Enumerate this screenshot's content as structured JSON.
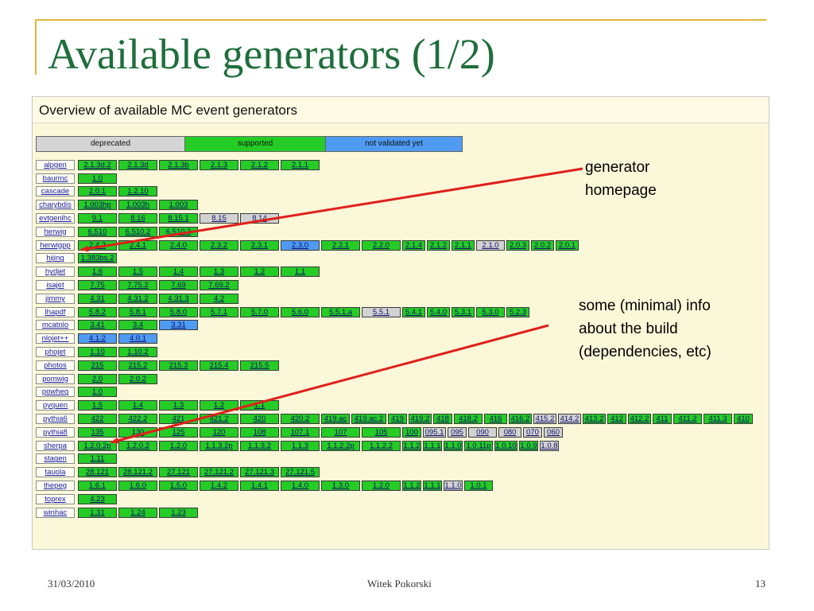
{
  "slide": {
    "title": "Available generators (1/2)",
    "footer": {
      "date": "31/03/2010",
      "author": "Witek Pokorski",
      "page": "13"
    }
  },
  "panel": {
    "title": "Overview of available MC event generators",
    "legend": {
      "deprecated": "deprecated",
      "supported": "supported",
      "not_validated": "not validated yet"
    }
  },
  "colors": {
    "supported": "#25cc25",
    "deprecated": "#d2d2d2",
    "not_validated": "#4f9bf3",
    "title": "#1f6e3c",
    "arrow": "#e0201a",
    "panel_bg": "#fbf7d9"
  },
  "annotations": {
    "homepage": [
      "generator",
      "homepage"
    ],
    "build_info": [
      "some (minimal) info",
      "about the build",
      "(dependencies, etc)"
    ]
  },
  "generators": [
    {
      "name": "alpgen",
      "versions": [
        {
          "v": "2.1.3d.2",
          "s": "s",
          "w": "w"
        },
        {
          "v": "2.1.3d",
          "s": "s",
          "w": "w"
        },
        {
          "v": "2.1.3b",
          "s": "s",
          "w": "w"
        },
        {
          "v": "2.1.3",
          "s": "s",
          "w": "w"
        },
        {
          "v": "2.1.2",
          "s": "s",
          "w": "w"
        },
        {
          "v": "2.1.1",
          "s": "s",
          "w": "w"
        }
      ]
    },
    {
      "name": "baurmc",
      "versions": [
        {
          "v": "1.0",
          "s": "s",
          "w": "w"
        }
      ]
    },
    {
      "name": "cascade",
      "versions": [
        {
          "v": "2.0.1",
          "s": "s",
          "w": "w"
        },
        {
          "v": "1.2.10",
          "s": "s",
          "w": "w"
        }
      ]
    },
    {
      "name": "charybdis",
      "versions": [
        {
          "v": "1.003hp",
          "s": "s",
          "w": "w"
        },
        {
          "v": "1.003h",
          "s": "s",
          "w": "w"
        },
        {
          "v": "1.003",
          "s": "s",
          "w": "w"
        }
      ]
    },
    {
      "name": "evtgenlhc",
      "versions": [
        {
          "v": "9.1",
          "s": "s",
          "w": "w"
        },
        {
          "v": "8.16",
          "s": "s",
          "w": "w"
        },
        {
          "v": "8.15.1",
          "s": "s",
          "w": "w"
        },
        {
          "v": "8.15",
          "s": "d",
          "w": "w"
        },
        {
          "v": "8.14",
          "s": "d",
          "w": "w"
        }
      ]
    },
    {
      "name": "herwig",
      "versions": [
        {
          "v": "6.510",
          "s": "s",
          "w": "w"
        },
        {
          "v": "6.510.2",
          "s": "s",
          "w": "w"
        },
        {
          "v": "6.510.3",
          "s": "s",
          "w": "w"
        }
      ]
    },
    {
      "name": "herwigpp",
      "versions": [
        {
          "v": "2.4.2",
          "s": "s",
          "w": "w"
        },
        {
          "v": "2.4.1",
          "s": "s",
          "w": "w"
        },
        {
          "v": "2.4.0",
          "s": "s",
          "w": "w"
        },
        {
          "v": "2.3.2",
          "s": "s",
          "w": "w"
        },
        {
          "v": "2.3.1",
          "s": "s",
          "w": "w"
        },
        {
          "v": "2.3.0",
          "s": "n",
          "w": "w"
        },
        {
          "v": "2.2.1",
          "s": "s",
          "w": "w"
        },
        {
          "v": "2.2.0",
          "s": "s",
          "w": "w"
        },
        {
          "v": "2.1.4",
          "s": "s",
          "w": "t"
        },
        {
          "v": "2.1.2",
          "s": "s",
          "w": "t"
        },
        {
          "v": "2.1.1",
          "s": "s",
          "w": "t"
        },
        {
          "v": "2.1.0",
          "s": "d",
          "w": "x"
        },
        {
          "v": "2.0.3",
          "s": "s",
          "w": "t"
        },
        {
          "v": "2.0.2",
          "s": "s",
          "w": "t"
        },
        {
          "v": "2.0.1",
          "s": "s",
          "w": "t"
        }
      ]
    },
    {
      "name": "hijing",
      "versions": [
        {
          "v": "1.383bs.2",
          "s": "s",
          "w": "w"
        }
      ]
    },
    {
      "name": "hydjet",
      "versions": [
        {
          "v": "1.6",
          "s": "s",
          "w": "w"
        },
        {
          "v": "1.5",
          "s": "s",
          "w": "w"
        },
        {
          "v": "1.4",
          "s": "s",
          "w": "w"
        },
        {
          "v": "1.3",
          "s": "s",
          "w": "w"
        },
        {
          "v": "1.2",
          "s": "s",
          "w": "w"
        },
        {
          "v": "1.1",
          "s": "s",
          "w": "w"
        }
      ]
    },
    {
      "name": "isajet",
      "versions": [
        {
          "v": "7.75",
          "s": "s",
          "w": "w"
        },
        {
          "v": "7.75.2",
          "s": "s",
          "w": "w"
        },
        {
          "v": "7.69",
          "s": "s",
          "w": "w"
        },
        {
          "v": "7.69.2",
          "s": "s",
          "w": "w"
        }
      ]
    },
    {
      "name": "jimmy",
      "versions": [
        {
          "v": "4.31",
          "s": "s",
          "w": "w"
        },
        {
          "v": "4.31.2",
          "s": "s",
          "w": "w"
        },
        {
          "v": "4.31.3",
          "s": "s",
          "w": "w"
        },
        {
          "v": "4.2",
          "s": "s",
          "w": "w"
        }
      ]
    },
    {
      "name": "lhapdf",
      "versions": [
        {
          "v": "5.8.2",
          "s": "s",
          "w": "w"
        },
        {
          "v": "5.8.1",
          "s": "s",
          "w": "w"
        },
        {
          "v": "5.8.0",
          "s": "s",
          "w": "w"
        },
        {
          "v": "5.7.1",
          "s": "s",
          "w": "w"
        },
        {
          "v": "5.7.0",
          "s": "s",
          "w": "w"
        },
        {
          "v": "5.6.0",
          "s": "s",
          "w": "w"
        },
        {
          "v": "5.5.1.a",
          "s": "s",
          "w": "w"
        },
        {
          "v": "5.5.1",
          "s": "d",
          "w": "w"
        },
        {
          "v": "5.4.1",
          "s": "s",
          "w": "t"
        },
        {
          "v": "5.4.0",
          "s": "s",
          "w": "t"
        },
        {
          "v": "5.3.1",
          "s": "s",
          "w": "t"
        },
        {
          "v": "5.3.0",
          "s": "s",
          "w": "x"
        },
        {
          "v": "5.2.3",
          "s": "s",
          "w": "t"
        }
      ]
    },
    {
      "name": "mcatnlo",
      "versions": [
        {
          "v": "3.41",
          "s": "s",
          "w": "w"
        },
        {
          "v": "3.4",
          "s": "s",
          "w": "w"
        },
        {
          "v": "3.31",
          "s": "n",
          "w": "w"
        }
      ]
    },
    {
      "name": "nlojet++",
      "versions": [
        {
          "v": "4.1.2",
          "s": "n",
          "w": "w"
        },
        {
          "v": "4.0.1",
          "s": "n",
          "w": "w"
        }
      ]
    },
    {
      "name": "phojet",
      "versions": [
        {
          "v": "1.10",
          "s": "s",
          "w": "w"
        },
        {
          "v": "1.10.2",
          "s": "s",
          "w": "w"
        }
      ]
    },
    {
      "name": "photos",
      "versions": [
        {
          "v": "215",
          "s": "s",
          "w": "w"
        },
        {
          "v": "215.2",
          "s": "s",
          "w": "w"
        },
        {
          "v": "215.3",
          "s": "s",
          "w": "w"
        },
        {
          "v": "215.4",
          "s": "s",
          "w": "w"
        },
        {
          "v": "215.5",
          "s": "s",
          "w": "w"
        }
      ]
    },
    {
      "name": "pomwig",
      "versions": [
        {
          "v": "2.0",
          "s": "s",
          "w": "w"
        },
        {
          "v": "2.0.2",
          "s": "s",
          "w": "w"
        }
      ]
    },
    {
      "name": "powheg",
      "versions": [
        {
          "v": "1.0",
          "s": "s",
          "w": "w"
        }
      ]
    },
    {
      "name": "pyquen",
      "versions": [
        {
          "v": "1.5",
          "s": "s",
          "w": "w"
        },
        {
          "v": "1.4",
          "s": "s",
          "w": "w"
        },
        {
          "v": "1.3",
          "s": "s",
          "w": "w"
        },
        {
          "v": "1.2",
          "s": "s",
          "w": "w"
        },
        {
          "v": "1.1",
          "s": "s",
          "w": "w"
        }
      ]
    },
    {
      "name": "pythia6",
      "versions": [
        {
          "v": "422",
          "s": "s",
          "w": "w"
        },
        {
          "v": "422.2",
          "s": "s",
          "w": "w"
        },
        {
          "v": "421",
          "s": "s",
          "w": "w"
        },
        {
          "v": "421.2",
          "s": "s",
          "w": "w"
        },
        {
          "v": "420",
          "s": "s",
          "w": "w"
        },
        {
          "v": "420.2",
          "s": "s",
          "w": "w"
        },
        {
          "v": "419.ac",
          "s": "s",
          "w": "x"
        },
        {
          "v": "419.ac.2",
          "s": "s",
          "w": "m"
        },
        {
          "v": "419",
          "s": "s",
          "w": "q"
        },
        {
          "v": "419.2",
          "s": "s",
          "w": "t"
        },
        {
          "v": "418",
          "s": "s",
          "w": "q"
        },
        {
          "v": "418.2",
          "s": "s",
          "w": "x"
        },
        {
          "v": "416",
          "s": "s",
          "w": "t"
        },
        {
          "v": "416.2",
          "s": "s",
          "w": "t"
        },
        {
          "v": "415.2",
          "s": "d",
          "w": "t"
        },
        {
          "v": "414.2",
          "s": "d",
          "w": "t"
        },
        {
          "v": "413.2",
          "s": "s",
          "w": "t"
        },
        {
          "v": "412",
          "s": "s",
          "w": "q"
        },
        {
          "v": "412.2",
          "s": "s",
          "w": "t"
        },
        {
          "v": "411",
          "s": "s",
          "w": "q"
        },
        {
          "v": "411.2",
          "s": "s",
          "w": "x"
        },
        {
          "v": "411.3",
          "s": "s",
          "w": "x"
        },
        {
          "v": "410",
          "s": "s",
          "w": "q"
        }
      ]
    },
    {
      "name": "pythia8",
      "versions": [
        {
          "v": "135",
          "s": "s",
          "w": "w"
        },
        {
          "v": "130",
          "s": "s",
          "w": "w"
        },
        {
          "v": "125",
          "s": "s",
          "w": "w"
        },
        {
          "v": "120",
          "s": "s",
          "w": "w"
        },
        {
          "v": "108",
          "s": "s",
          "w": "w"
        },
        {
          "v": "107.1",
          "s": "s",
          "w": "w"
        },
        {
          "v": "107",
          "s": "s",
          "w": "w"
        },
        {
          "v": "105",
          "s": "s",
          "w": "w"
        },
        {
          "v": "100",
          "s": "s",
          "w": "q"
        },
        {
          "v": "095.1",
          "s": "d",
          "w": "t"
        },
        {
          "v": "095",
          "s": "d",
          "w": "q"
        },
        {
          "v": "090",
          "s": "d",
          "w": "x"
        },
        {
          "v": "080",
          "s": "d",
          "w": "t"
        },
        {
          "v": "070",
          "s": "d",
          "w": "q"
        },
        {
          "v": "060",
          "s": "d",
          "w": "q"
        }
      ]
    },
    {
      "name": "sherpa",
      "versions": [
        {
          "v": "1.2.0.2p",
          "s": "s",
          "w": "w"
        },
        {
          "v": "1.2.0.2",
          "s": "s",
          "w": "w"
        },
        {
          "v": "1.2.0",
          "s": "s",
          "w": "w"
        },
        {
          "v": "1.1.3.2p",
          "s": "s",
          "w": "w"
        },
        {
          "v": "1.1.3.2",
          "s": "s",
          "w": "w"
        },
        {
          "v": "1.1.3",
          "s": "s",
          "w": "w"
        },
        {
          "v": "1.1.2.2p",
          "s": "s",
          "w": "w"
        },
        {
          "v": "1.1.2.2",
          "s": "s",
          "w": "w"
        },
        {
          "v": "1.1.2",
          "s": "s",
          "w": "q"
        },
        {
          "v": "1.1.1",
          "s": "s",
          "w": "q"
        },
        {
          "v": "1.1.0",
          "s": "s",
          "w": "q"
        },
        {
          "v": "1.0.11p",
          "s": "s",
          "w": "x"
        },
        {
          "v": "1.0.10",
          "s": "s",
          "w": "t"
        },
        {
          "v": "1.0.9",
          "s": "s",
          "w": "q"
        },
        {
          "v": "1.0.8",
          "s": "d",
          "w": "q"
        }
      ]
    },
    {
      "name": "stagen",
      "versions": [
        {
          "v": "1.11",
          "s": "s",
          "w": "w"
        }
      ]
    },
    {
      "name": "tauola",
      "versions": [
        {
          "v": "28.121",
          "s": "s",
          "w": "w"
        },
        {
          "v": "28.121.2",
          "s": "s",
          "w": "w"
        },
        {
          "v": "27.121",
          "s": "s",
          "w": "w"
        },
        {
          "v": "27.121.2",
          "s": "s",
          "w": "w"
        },
        {
          "v": "27.121.3",
          "s": "s",
          "w": "w"
        },
        {
          "v": "27.121.5",
          "s": "s",
          "w": "w"
        }
      ]
    },
    {
      "name": "thepeg",
      "versions": [
        {
          "v": "1.6.1",
          "s": "s",
          "w": "w"
        },
        {
          "v": "1.6.0",
          "s": "s",
          "w": "w"
        },
        {
          "v": "1.5.0",
          "s": "s",
          "w": "w"
        },
        {
          "v": "1.4.2",
          "s": "s",
          "w": "w"
        },
        {
          "v": "1.4.1",
          "s": "s",
          "w": "w"
        },
        {
          "v": "1.4.0",
          "s": "s",
          "w": "w"
        },
        {
          "v": "1.3.0",
          "s": "s",
          "w": "w"
        },
        {
          "v": "1.2.0",
          "s": "s",
          "w": "w"
        },
        {
          "v": "1.1.2",
          "s": "s",
          "w": "q"
        },
        {
          "v": "1.1.1",
          "s": "s",
          "w": "q"
        },
        {
          "v": "1.1.0",
          "s": "d",
          "w": "q"
        },
        {
          "v": "1.0.1",
          "s": "s",
          "w": "x"
        }
      ]
    },
    {
      "name": "toprex",
      "versions": [
        {
          "v": "4.23",
          "s": "s",
          "w": "w"
        }
      ]
    },
    {
      "name": "winhac",
      "versions": [
        {
          "v": "1.31",
          "s": "s",
          "w": "w"
        },
        {
          "v": "1.24",
          "s": "s",
          "w": "w"
        },
        {
          "v": "1.23",
          "s": "s",
          "w": "w"
        }
      ]
    }
  ]
}
